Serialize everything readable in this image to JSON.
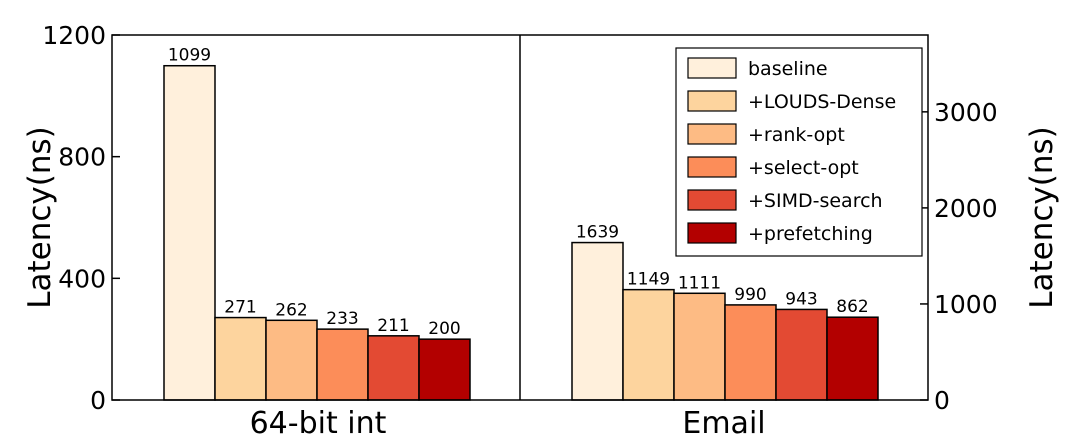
{
  "chart_data": {
    "type": "bar",
    "title": "",
    "categories": [
      "64-bit int",
      "Email"
    ],
    "series": [
      {
        "name": "baseline",
        "color": "#fff0dc",
        "values": [
          1099,
          1639
        ]
      },
      {
        "name": "+LOUDS-Dense",
        "color": "#fdd49e",
        "values": [
          271,
          1149
        ]
      },
      {
        "name": "+rank-opt",
        "color": "#fdbb84",
        "values": [
          262,
          1111
        ]
      },
      {
        "name": "+select-opt",
        "color": "#fc8d59",
        "values": [
          233,
          990
        ]
      },
      {
        "name": "+SIMD-search",
        "color": "#e34a33",
        "values": [
          211,
          943
        ]
      },
      {
        "name": "+prefetching",
        "color": "#b30000",
        "values": [
          200,
          862
        ]
      }
    ],
    "data_labels": [
      [
        "1099",
        "271",
        "262",
        "233",
        "211",
        "200"
      ],
      [
        "1639",
        "1149",
        "1111",
        "990",
        "943",
        "862"
      ]
    ],
    "left_axis": {
      "label": "Latency(ns)",
      "ylim": [
        0,
        1200
      ],
      "ticks": [
        "0",
        "400",
        "800",
        "1200"
      ]
    },
    "right_axis": {
      "label": "Latency(ns)",
      "ylim": [
        0,
        3800
      ],
      "ticks": [
        "0",
        "1000",
        "2000",
        "3000"
      ]
    },
    "legend_position": "top-right",
    "grid": false
  }
}
